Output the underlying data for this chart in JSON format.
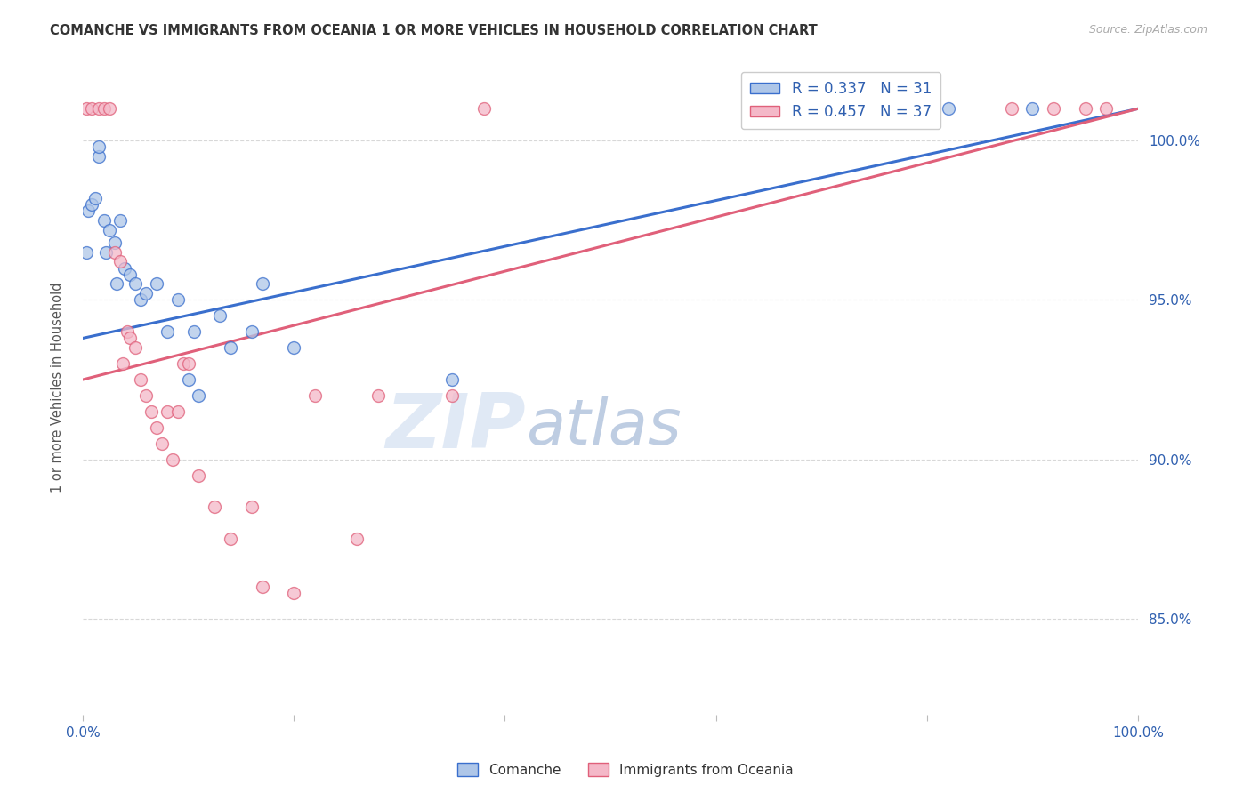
{
  "title": "COMANCHE VS IMMIGRANTS FROM OCEANIA 1 OR MORE VEHICLES IN HOUSEHOLD CORRELATION CHART",
  "source": "Source: ZipAtlas.com",
  "ylabel": "1 or more Vehicles in Household",
  "x_min": 0.0,
  "x_max": 100.0,
  "y_min": 82.0,
  "y_max": 102.5,
  "y_ticks": [
    85.0,
    90.0,
    95.0,
    100.0
  ],
  "x_ticks": [
    0.0,
    20.0,
    40.0,
    60.0,
    80.0,
    100.0
  ],
  "x_tick_labels": [
    "0.0%",
    "",
    "",
    "",
    "",
    "100.0%"
  ],
  "y_tick_labels": [
    "85.0%",
    "90.0%",
    "95.0%",
    "100.0%"
  ],
  "legend_blue_label": "R = 0.337   N = 31",
  "legend_pink_label": "R = 0.457   N = 37",
  "bottom_legend_blue": "Comanche",
  "bottom_legend_pink": "Immigrants from Oceania",
  "blue_color": "#aec6e8",
  "pink_color": "#f4b8c8",
  "blue_line_color": "#3a6fcd",
  "pink_line_color": "#e0607a",
  "background_color": "#ffffff",
  "grid_color": "#d8d8d8",
  "watermark_zip": "ZIP",
  "watermark_atlas": "atlas",
  "watermark_color_zip": "#c8d8ee",
  "watermark_color_atlas": "#7090c0",
  "comanche_x": [
    0.3,
    0.5,
    0.8,
    1.2,
    1.5,
    1.5,
    2.0,
    2.2,
    2.5,
    3.0,
    3.2,
    3.5,
    4.0,
    4.5,
    5.0,
    5.5,
    6.0,
    7.0,
    8.0,
    9.0,
    10.0,
    10.5,
    11.0,
    13.0,
    14.0,
    16.0,
    17.0,
    20.0,
    35.0,
    82.0,
    90.0
  ],
  "comanche_y": [
    96.5,
    97.8,
    98.0,
    98.2,
    99.5,
    99.8,
    97.5,
    96.5,
    97.2,
    96.8,
    95.5,
    97.5,
    96.0,
    95.8,
    95.5,
    95.0,
    95.2,
    95.5,
    94.0,
    95.0,
    92.5,
    94.0,
    92.0,
    94.5,
    93.5,
    94.0,
    95.5,
    93.5,
    92.5,
    101.0,
    101.0
  ],
  "oceania_x": [
    0.3,
    0.8,
    1.5,
    2.0,
    2.5,
    3.0,
    3.5,
    3.8,
    4.2,
    4.5,
    5.0,
    5.5,
    6.0,
    6.5,
    7.0,
    7.5,
    8.0,
    8.5,
    9.0,
    9.5,
    10.0,
    11.0,
    12.5,
    14.0,
    16.0,
    17.0,
    20.0,
    22.0,
    26.0,
    28.0,
    35.0,
    38.0,
    80.0,
    88.0,
    92.0,
    95.0,
    97.0
  ],
  "oceania_y": [
    101.0,
    101.0,
    101.0,
    101.0,
    101.0,
    96.5,
    96.2,
    93.0,
    94.0,
    93.8,
    93.5,
    92.5,
    92.0,
    91.5,
    91.0,
    90.5,
    91.5,
    90.0,
    91.5,
    93.0,
    93.0,
    89.5,
    88.5,
    87.5,
    88.5,
    86.0,
    85.8,
    92.0,
    87.5,
    92.0,
    92.0,
    101.0,
    101.0,
    101.0,
    101.0,
    101.0,
    101.0
  ],
  "blue_trend_x0": 0.0,
  "blue_trend_y0": 93.8,
  "blue_trend_x1": 100.0,
  "blue_trend_y1": 101.0,
  "pink_trend_x0": 0.0,
  "pink_trend_y0": 92.5,
  "pink_trend_x1": 100.0,
  "pink_trend_y1": 101.0
}
